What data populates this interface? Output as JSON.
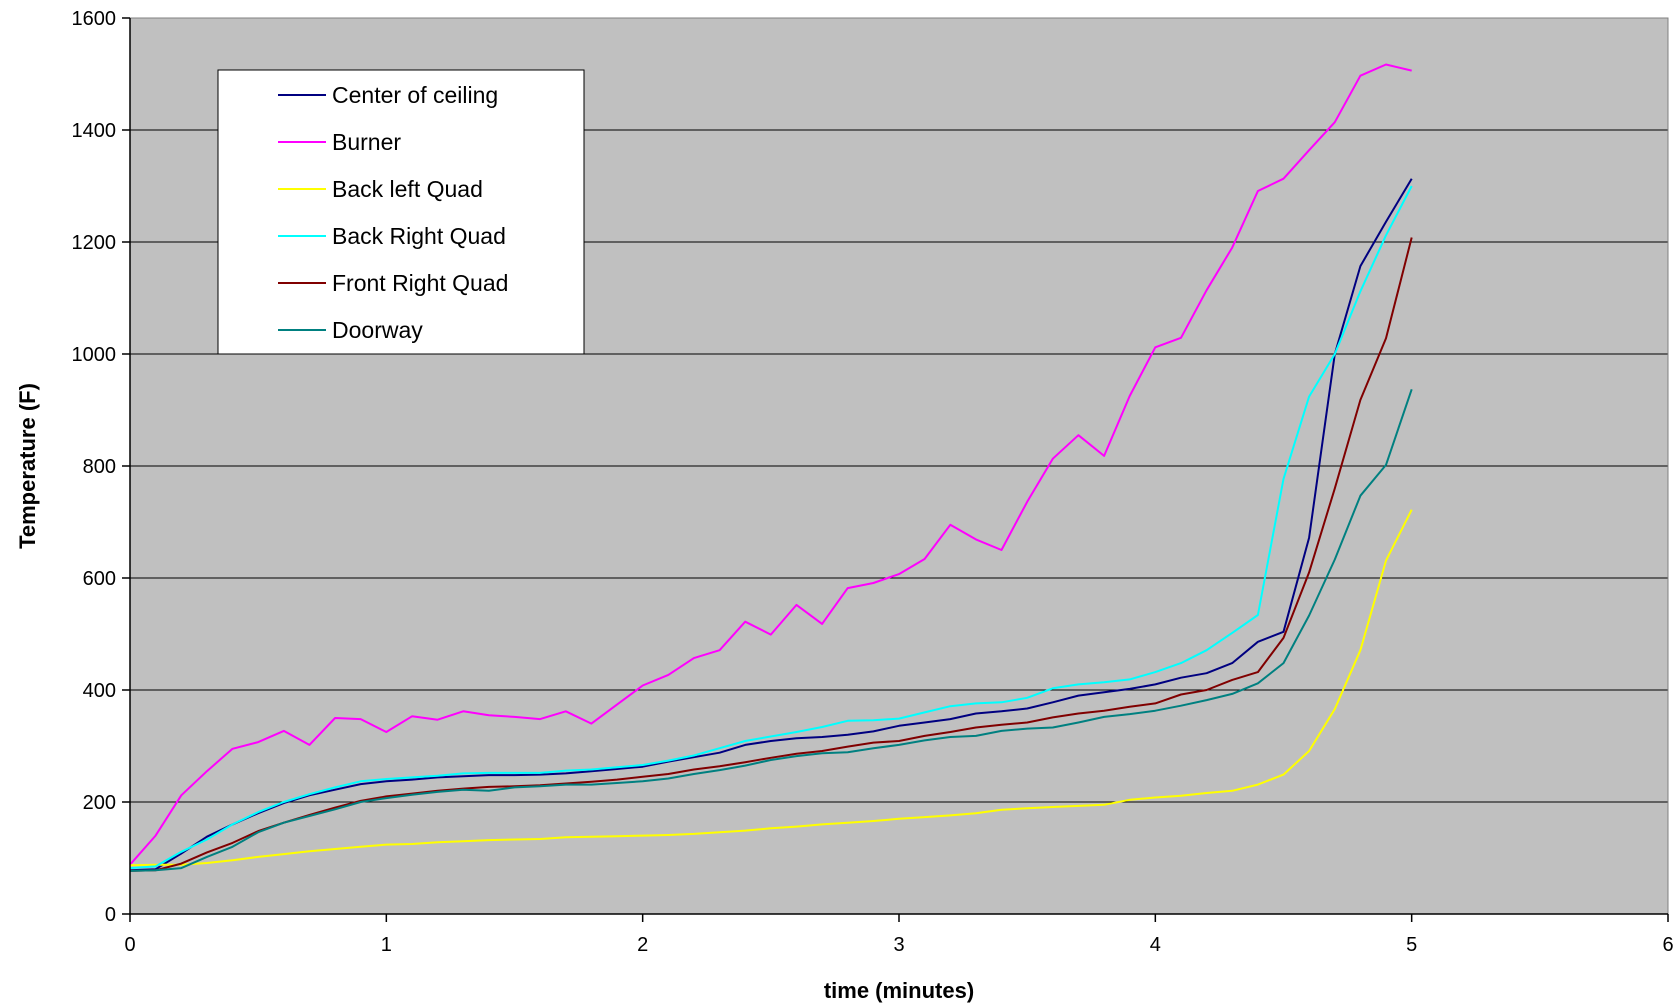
{
  "chart_data": {
    "type": "line",
    "title": "",
    "xlabel": "time (minutes)",
    "ylabel": "Temperature (F)",
    "xlim": [
      0,
      6
    ],
    "ylim": [
      0,
      1600
    ],
    "x_ticks": [
      0,
      1,
      2,
      3,
      4,
      5,
      6
    ],
    "y_ticks": [
      0,
      200,
      400,
      600,
      800,
      1000,
      1200,
      1400,
      1600
    ],
    "grid": "horizontal",
    "plot_background": "#c0c0c0",
    "legend_position": "top-left",
    "x": [
      0,
      0.1,
      0.2,
      0.3,
      0.4,
      0.5,
      0.6,
      0.7,
      0.8,
      0.9,
      1.0,
      1.1,
      1.2,
      1.3,
      1.4,
      1.5,
      1.6,
      1.7,
      1.8,
      1.9,
      2.0,
      2.1,
      2.2,
      2.3,
      2.4,
      2.5,
      2.6,
      2.7,
      2.8,
      2.9,
      3.0,
      3.1,
      3.2,
      3.3,
      3.4,
      3.5,
      3.6,
      3.7,
      3.8,
      3.9,
      4.0,
      4.1,
      4.2,
      4.3,
      4.4,
      4.5,
      4.6,
      4.7,
      4.8,
      4.9,
      5.0
    ],
    "series": [
      {
        "name": "Center of ceiling",
        "color": "#000080",
        "values": [
          78,
          80,
          108,
          138,
          160,
          180,
          198,
          212,
          222,
          232,
          237,
          240,
          244,
          246,
          248,
          248,
          249,
          251,
          255,
          259,
          263,
          272,
          280,
          288,
          302,
          309,
          314,
          316,
          320,
          326,
          336,
          342,
          348,
          358,
          362,
          367,
          378,
          390,
          396,
          402,
          410,
          422,
          430,
          448,
          486,
          504,
          672,
          1000,
          1157,
          1236,
          1313
        ]
      },
      {
        "name": "Burner",
        "color": "#ff00ff",
        "values": [
          88,
          140,
          212,
          255,
          295,
          307,
          327,
          302,
          350,
          348,
          325,
          353,
          347,
          362,
          355,
          352,
          348,
          362,
          340,
          374,
          408,
          427,
          457,
          471,
          522,
          499,
          552,
          518,
          582,
          591,
          607,
          634,
          695,
          669,
          650,
          736,
          813,
          855,
          818,
          925,
          1012,
          1029,
          1114,
          1190,
          1291,
          1313,
          1364,
          1414,
          1497,
          1517,
          1506
        ]
      },
      {
        "name": "Back left Quad",
        "color": "#ffff00",
        "values": [
          87,
          88,
          88,
          91,
          96,
          102,
          107,
          112,
          116,
          120,
          124,
          125,
          128,
          130,
          132,
          133,
          134,
          137,
          138,
          139,
          140,
          141,
          143,
          146,
          149,
          153,
          156,
          160,
          163,
          166,
          170,
          173,
          176,
          180,
          186,
          189,
          191,
          193,
          195,
          204,
          208,
          211,
          216,
          220,
          231,
          249,
          291,
          366,
          471,
          631,
          722
        ]
      },
      {
        "name": "Back Right Quad",
        "color": "#00ffff",
        "values": [
          82,
          85,
          111,
          133,
          160,
          182,
          200,
          214,
          226,
          237,
          241,
          244,
          247,
          251,
          252,
          252,
          252,
          256,
          258,
          262,
          266,
          274,
          283,
          296,
          309,
          317,
          325,
          334,
          345,
          346,
          349,
          360,
          371,
          376,
          378,
          386,
          403,
          410,
          414,
          419,
          432,
          448,
          471,
          502,
          534,
          777,
          924,
          1000,
          1112,
          1212,
          1300
        ]
      },
      {
        "name": "Front Right Quad",
        "color": "#800000",
        "values": [
          77,
          78,
          90,
          110,
          127,
          148,
          163,
          177,
          190,
          202,
          210,
          215,
          220,
          224,
          227,
          228,
          230,
          233,
          236,
          240,
          245,
          250,
          258,
          264,
          271,
          279,
          286,
          291,
          299,
          306,
          309,
          318,
          325,
          333,
          338,
          342,
          351,
          358,
          363,
          370,
          376,
          392,
          400,
          418,
          432,
          493,
          610,
          760,
          918,
          1028,
          1208
        ]
      },
      {
        "name": "Doorway",
        "color": "#008080",
        "values": [
          77,
          78,
          82,
          102,
          120,
          146,
          163,
          175,
          187,
          200,
          207,
          213,
          218,
          222,
          220,
          226,
          228,
          231,
          231,
          234,
          237,
          242,
          250,
          257,
          265,
          275,
          282,
          287,
          289,
          296,
          302,
          310,
          316,
          318,
          327,
          331,
          333,
          342,
          352,
          357,
          363,
          372,
          382,
          393,
          412,
          448,
          533,
          633,
          747,
          802,
          937
        ]
      }
    ]
  }
}
